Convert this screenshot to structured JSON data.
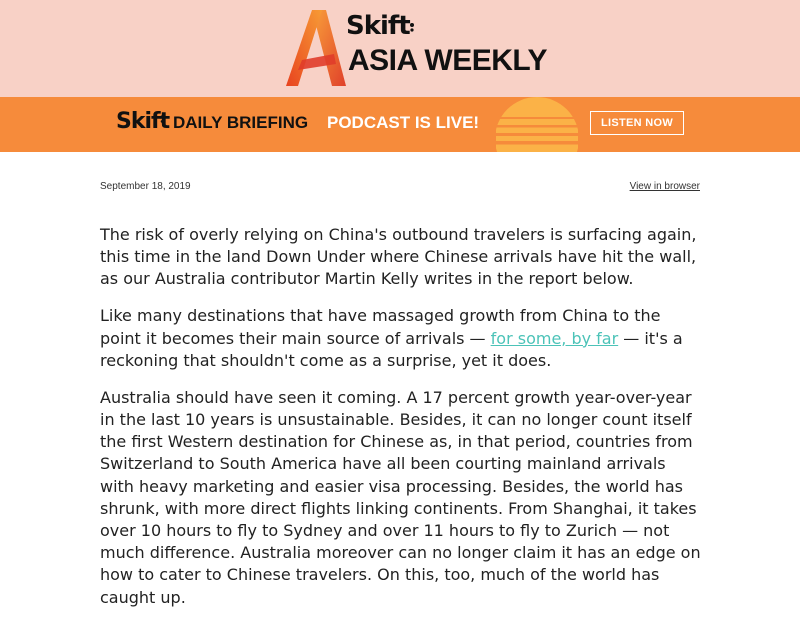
{
  "header": {
    "brand": "Skift",
    "subtitle": "ASIA WEEKLY"
  },
  "banner": {
    "brand": "Skift",
    "daily": "DAILY BRIEFING",
    "podcast": "PODCAST IS LIVE!",
    "listen_label": "LISTEN NOW"
  },
  "meta": {
    "date": "September 18, 2019",
    "view_in_browser": "View in browser"
  },
  "colors": {
    "header_bg": "#f8d1c6",
    "banner_bg": "#f68b3b",
    "link": "#4cc3b8"
  },
  "article": {
    "p1": "The risk of overly relying on China's outbound travelers is surfacing again, this time in the land Down Under where Chinese arrivals have hit the wall, as our Australia contributor Martin Kelly writes in the report below.",
    "p2_before": "Like many destinations that have massaged growth from China to the point it becomes their main source of arrivals — ",
    "p2_link": "for some, by far",
    "p2_after": " — it's a reckoning that shouldn't come as a surprise, yet it does.",
    "p3": "Australia should have seen it coming. A 17 percent growth year-over-year in the last 10 years is unsustainable. Besides, it can no longer count itself the first Western destination for Chinese as, in that period, countries from Switzerland to South America have all been courting mainland arrivals with heavy marketing and easier visa processing. Besides, the world has shrunk, with more direct flights linking continents. From Shanghai, it takes over 10 hours to fly to Sydney and over 11 hours to fly to Zurich — not much difference. Australia moreover can no longer claim it has an edge on how to cater to Chinese travelers. On this, too, much of the world has caught up."
  }
}
